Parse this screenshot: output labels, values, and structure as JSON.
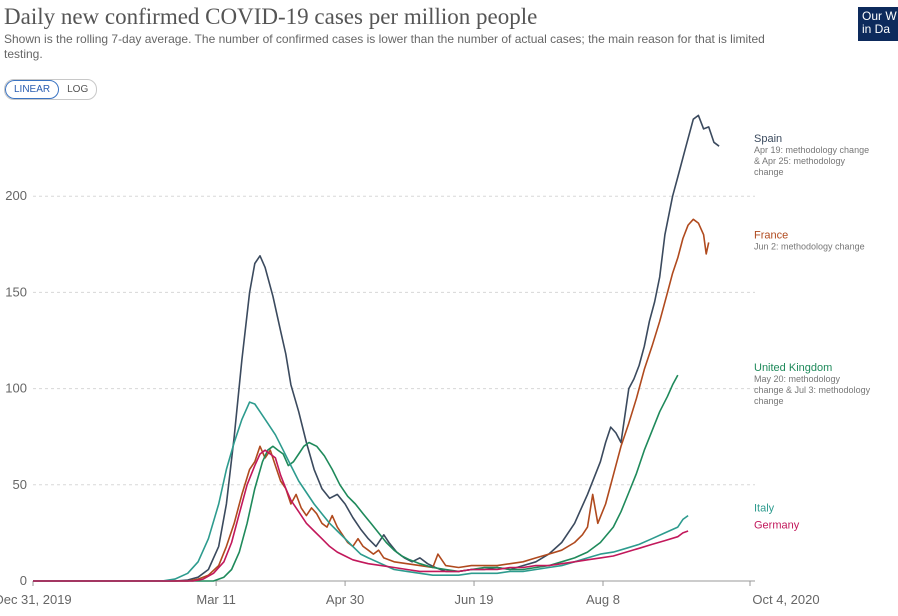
{
  "header": {
    "title": "Daily new confirmed COVID-19 cases per million people",
    "subtitle": "Shown is the rolling 7-day average. The number of confirmed cases is lower than the number of actual cases; the main reason for that is limited testing.",
    "logo_line1": "Our W",
    "logo_line2": "in Da"
  },
  "controls": {
    "linear_label": "LINEAR",
    "log_label": "LOG",
    "active": "linear"
  },
  "chart_data": {
    "type": "line",
    "title": "Daily new confirmed COVID-19 cases per million people",
    "xlabel": "",
    "ylabel": "",
    "x_range": [
      0,
      278
    ],
    "ylim": [
      0,
      250
    ],
    "yticks": [
      0,
      50,
      100,
      150,
      200
    ],
    "xticks": [
      {
        "day": 0,
        "label": "Dec 31, 2019"
      },
      {
        "day": 71,
        "label": "Mar 11"
      },
      {
        "day": 121,
        "label": "Apr 30"
      },
      {
        "day": 171,
        "label": "Jun 19"
      },
      {
        "day": 221,
        "label": "Aug 8"
      },
      {
        "day": 278,
        "label": "Oct 4, 2020"
      }
    ],
    "grid": true,
    "series": [
      {
        "name": "Spain",
        "color": "#3b4a5e",
        "annotation": [
          "Apr 19: methodology change",
          "& Apr 25: methodology",
          "change"
        ],
        "points": [
          [
            0,
            0
          ],
          [
            55,
            0
          ],
          [
            60,
            0.5
          ],
          [
            64,
            2
          ],
          [
            68,
            6
          ],
          [
            72,
            18
          ],
          [
            75,
            40
          ],
          [
            78,
            75
          ],
          [
            81,
            115
          ],
          [
            84,
            150
          ],
          [
            86,
            165
          ],
          [
            88,
            169
          ],
          [
            90,
            163
          ],
          [
            93,
            148
          ],
          [
            96,
            130
          ],
          [
            98,
            118
          ],
          [
            100,
            102
          ],
          [
            103,
            88
          ],
          [
            106,
            72
          ],
          [
            109,
            58
          ],
          [
            112,
            48
          ],
          [
            115,
            43
          ],
          [
            118,
            45
          ],
          [
            121,
            40
          ],
          [
            124,
            33
          ],
          [
            127,
            27
          ],
          [
            130,
            22
          ],
          [
            133,
            18
          ],
          [
            136,
            24
          ],
          [
            138,
            20
          ],
          [
            141,
            15
          ],
          [
            144,
            12
          ],
          [
            147,
            10
          ],
          [
            150,
            12
          ],
          [
            153,
            9
          ],
          [
            156,
            7
          ],
          [
            160,
            5
          ],
          [
            165,
            5
          ],
          [
            170,
            6
          ],
          [
            175,
            6
          ],
          [
            180,
            7
          ],
          [
            185,
            6
          ],
          [
            190,
            8
          ],
          [
            195,
            10
          ],
          [
            200,
            14
          ],
          [
            205,
            20
          ],
          [
            210,
            30
          ],
          [
            215,
            45
          ],
          [
            220,
            62
          ],
          [
            222,
            72
          ],
          [
            224,
            80
          ],
          [
            226,
            77
          ],
          [
            228,
            72
          ],
          [
            231,
            100
          ],
          [
            233,
            105
          ],
          [
            235,
            112
          ],
          [
            237,
            122
          ],
          [
            239,
            135
          ],
          [
            241,
            145
          ],
          [
            243,
            158
          ],
          [
            245,
            180
          ],
          [
            248,
            200
          ],
          [
            250,
            210
          ],
          [
            253,
            225
          ],
          [
            256,
            240
          ],
          [
            258,
            242
          ],
          [
            260,
            235
          ],
          [
            262,
            236
          ],
          [
            264,
            228
          ],
          [
            266,
            226
          ]
        ]
      },
      {
        "name": "France",
        "color": "#b04a1e",
        "annotation": [
          "Jun 2: methodology change"
        ],
        "points": [
          [
            0,
            0
          ],
          [
            60,
            0
          ],
          [
            64,
            1
          ],
          [
            68,
            3
          ],
          [
            72,
            8
          ],
          [
            75,
            18
          ],
          [
            78,
            30
          ],
          [
            81,
            45
          ],
          [
            84,
            58
          ],
          [
            86,
            62
          ],
          [
            88,
            70
          ],
          [
            90,
            64
          ],
          [
            92,
            68
          ],
          [
            94,
            60
          ],
          [
            96,
            52
          ],
          [
            98,
            48
          ],
          [
            100,
            40
          ],
          [
            102,
            45
          ],
          [
            104,
            38
          ],
          [
            106,
            34
          ],
          [
            108,
            38
          ],
          [
            110,
            35
          ],
          [
            112,
            30
          ],
          [
            114,
            28
          ],
          [
            116,
            34
          ],
          [
            118,
            28
          ],
          [
            120,
            24
          ],
          [
            122,
            20
          ],
          [
            124,
            18
          ],
          [
            126,
            22
          ],
          [
            128,
            18
          ],
          [
            130,
            16
          ],
          [
            132,
            14
          ],
          [
            134,
            16
          ],
          [
            136,
            12
          ],
          [
            140,
            10
          ],
          [
            145,
            9
          ],
          [
            150,
            8
          ],
          [
            155,
            7
          ],
          [
            157,
            14
          ],
          [
            158,
            12
          ],
          [
            160,
            8
          ],
          [
            165,
            7
          ],
          [
            170,
            8
          ],
          [
            175,
            8
          ],
          [
            180,
            8
          ],
          [
            185,
            9
          ],
          [
            190,
            10
          ],
          [
            195,
            12
          ],
          [
            200,
            14
          ],
          [
            205,
            16
          ],
          [
            210,
            20
          ],
          [
            213,
            24
          ],
          [
            215,
            28
          ],
          [
            217,
            45
          ],
          [
            219,
            30
          ],
          [
            222,
            40
          ],
          [
            225,
            55
          ],
          [
            228,
            70
          ],
          [
            231,
            82
          ],
          [
            234,
            95
          ],
          [
            237,
            110
          ],
          [
            240,
            122
          ],
          [
            243,
            135
          ],
          [
            246,
            150
          ],
          [
            248,
            160
          ],
          [
            250,
            168
          ],
          [
            252,
            178
          ],
          [
            254,
            185
          ],
          [
            256,
            188
          ],
          [
            258,
            186
          ],
          [
            260,
            180
          ],
          [
            261,
            170
          ],
          [
            262,
            176
          ]
        ]
      },
      {
        "name": "United Kingdom",
        "color": "#1f8a5b",
        "annotation": [
          "May 20: methodology",
          "change & Jul 3: methodology",
          "change"
        ],
        "points": [
          [
            0,
            0
          ],
          [
            70,
            0
          ],
          [
            74,
            2
          ],
          [
            77,
            6
          ],
          [
            80,
            15
          ],
          [
            83,
            30
          ],
          [
            86,
            48
          ],
          [
            89,
            62
          ],
          [
            91,
            68
          ],
          [
            93,
            70
          ],
          [
            95,
            68
          ],
          [
            97,
            66
          ],
          [
            99,
            60
          ],
          [
            101,
            62
          ],
          [
            103,
            66
          ],
          [
            105,
            70
          ],
          [
            107,
            72
          ],
          [
            110,
            70
          ],
          [
            113,
            65
          ],
          [
            116,
            58
          ],
          [
            119,
            50
          ],
          [
            122,
            44
          ],
          [
            125,
            40
          ],
          [
            128,
            35
          ],
          [
            131,
            30
          ],
          [
            134,
            25
          ],
          [
            137,
            20
          ],
          [
            140,
            16
          ],
          [
            143,
            13
          ],
          [
            146,
            11
          ],
          [
            150,
            9
          ],
          [
            155,
            7
          ],
          [
            160,
            6
          ],
          [
            165,
            5
          ],
          [
            170,
            6
          ],
          [
            175,
            7
          ],
          [
            180,
            7
          ],
          [
            185,
            6
          ],
          [
            190,
            6
          ],
          [
            195,
            7
          ],
          [
            200,
            8
          ],
          [
            205,
            10
          ],
          [
            210,
            12
          ],
          [
            215,
            15
          ],
          [
            220,
            20
          ],
          [
            225,
            28
          ],
          [
            228,
            36
          ],
          [
            231,
            46
          ],
          [
            234,
            56
          ],
          [
            237,
            68
          ],
          [
            240,
            78
          ],
          [
            243,
            88
          ],
          [
            246,
            96
          ],
          [
            248,
            102
          ],
          [
            250,
            107
          ]
        ]
      },
      {
        "name": "Italy",
        "color": "#2d9b8e",
        "annotation": [],
        "points": [
          [
            0,
            0
          ],
          [
            50,
            0
          ],
          [
            55,
            1
          ],
          [
            60,
            4
          ],
          [
            64,
            10
          ],
          [
            68,
            22
          ],
          [
            72,
            40
          ],
          [
            75,
            58
          ],
          [
            78,
            72
          ],
          [
            81,
            84
          ],
          [
            84,
            93
          ],
          [
            86,
            92
          ],
          [
            88,
            88
          ],
          [
            91,
            82
          ],
          [
            94,
            76
          ],
          [
            97,
            68
          ],
          [
            100,
            60
          ],
          [
            103,
            52
          ],
          [
            106,
            46
          ],
          [
            109,
            40
          ],
          [
            112,
            35
          ],
          [
            115,
            30
          ],
          [
            118,
            26
          ],
          [
            121,
            22
          ],
          [
            124,
            18
          ],
          [
            127,
            14
          ],
          [
            130,
            12
          ],
          [
            135,
            9
          ],
          [
            140,
            6
          ],
          [
            145,
            5
          ],
          [
            150,
            4
          ],
          [
            155,
            3
          ],
          [
            160,
            3
          ],
          [
            165,
            3
          ],
          [
            170,
            4
          ],
          [
            175,
            4
          ],
          [
            180,
            4
          ],
          [
            185,
            5
          ],
          [
            190,
            5
          ],
          [
            195,
            6
          ],
          [
            200,
            7
          ],
          [
            205,
            8
          ],
          [
            210,
            10
          ],
          [
            215,
            12
          ],
          [
            220,
            14
          ],
          [
            225,
            15
          ],
          [
            230,
            17
          ],
          [
            235,
            19
          ],
          [
            240,
            22
          ],
          [
            245,
            25
          ],
          [
            250,
            28
          ],
          [
            252,
            32
          ],
          [
            254,
            34
          ]
        ]
      },
      {
        "name": "Germany",
        "color": "#c2185b",
        "annotation": [],
        "points": [
          [
            0,
            0
          ],
          [
            62,
            0
          ],
          [
            66,
            1
          ],
          [
            70,
            4
          ],
          [
            74,
            10
          ],
          [
            77,
            20
          ],
          [
            80,
            35
          ],
          [
            83,
            50
          ],
          [
            86,
            60
          ],
          [
            88,
            66
          ],
          [
            90,
            68
          ],
          [
            92,
            66
          ],
          [
            94,
            64
          ],
          [
            96,
            55
          ],
          [
            98,
            48
          ],
          [
            100,
            42
          ],
          [
            103,
            36
          ],
          [
            106,
            30
          ],
          [
            109,
            26
          ],
          [
            112,
            22
          ],
          [
            115,
            18
          ],
          [
            118,
            15
          ],
          [
            121,
            13
          ],
          [
            124,
            11
          ],
          [
            127,
            10
          ],
          [
            130,
            9
          ],
          [
            135,
            8
          ],
          [
            140,
            7
          ],
          [
            145,
            6
          ],
          [
            150,
            5
          ],
          [
            155,
            5
          ],
          [
            160,
            5
          ],
          [
            165,
            5
          ],
          [
            170,
            6
          ],
          [
            175,
            6
          ],
          [
            180,
            6
          ],
          [
            185,
            7
          ],
          [
            190,
            7
          ],
          [
            195,
            8
          ],
          [
            200,
            8
          ],
          [
            205,
            9
          ],
          [
            210,
            10
          ],
          [
            215,
            11
          ],
          [
            220,
            12
          ],
          [
            225,
            13
          ],
          [
            230,
            15
          ],
          [
            235,
            17
          ],
          [
            240,
            19
          ],
          [
            245,
            21
          ],
          [
            250,
            23
          ],
          [
            252,
            25
          ],
          [
            254,
            26
          ]
        ]
      }
    ]
  }
}
